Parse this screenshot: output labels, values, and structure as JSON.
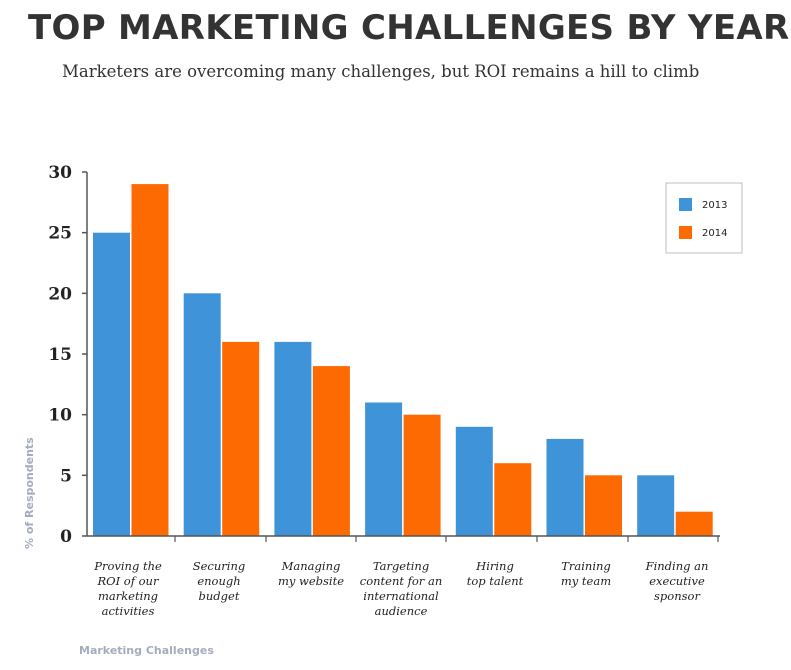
{
  "title": "TOP MARKETING CHALLENGES BY YEAR",
  "subtitle": "Marketers are overcoming many challenges, but ROI remains a hill to climb",
  "chart_data": {
    "type": "bar",
    "xlabel": "Marketing Challenges",
    "ylabel": "% of Respondents",
    "ylim": [
      0,
      30
    ],
    "yticks": [
      0,
      5,
      10,
      15,
      20,
      25,
      30
    ],
    "grid": false,
    "legend_position": "top-right",
    "categories": [
      [
        "Proving the",
        "ROI of our",
        "marketing",
        "activities"
      ],
      [
        "Securing",
        "enough",
        "budget"
      ],
      [
        "Managing",
        "my website"
      ],
      [
        "Targeting",
        "content for an",
        "international",
        "audience"
      ],
      [
        "Hiring",
        "top talent"
      ],
      [
        "Training",
        "my team"
      ],
      [
        "Finding an",
        "executive",
        "sponsor"
      ]
    ],
    "series": [
      {
        "name": "2013",
        "color": "#3f93d8",
        "values": [
          25,
          20,
          16,
          11,
          9,
          8,
          5
        ]
      },
      {
        "name": "2014",
        "color": "#fd6a02",
        "values": [
          29,
          16,
          14,
          10,
          6,
          5,
          2
        ]
      }
    ]
  }
}
